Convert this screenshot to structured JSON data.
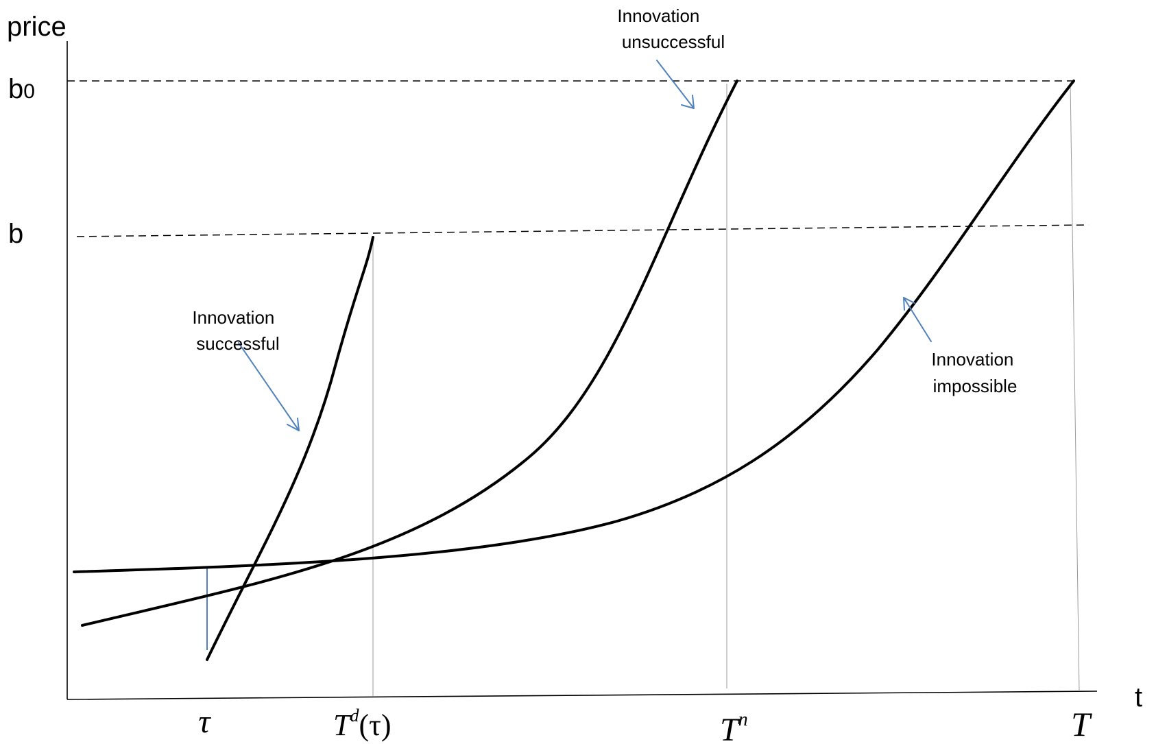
{
  "axes": {
    "y_label": "price",
    "x_label": "t"
  },
  "price_levels": {
    "b0": {
      "base": "b",
      "sub": "0"
    },
    "b": "b"
  },
  "time_marks": {
    "tau": "τ",
    "td": {
      "base": "T",
      "sup": "d",
      "arg": "(τ)"
    },
    "tn": {
      "base": "T",
      "sup": "n"
    },
    "t_final": "T"
  },
  "annotations": {
    "unsuccessful": {
      "line1": "Innovation",
      "line2": "unsuccessful"
    },
    "successful": {
      "line1": "Innovation",
      "line2": "successful"
    },
    "impossible": {
      "line1": "Innovation",
      "line2": "impossible"
    }
  },
  "colors": {
    "curve": "#000000",
    "arrow": "#4f81bd",
    "guide": "#9a9a9a"
  }
}
